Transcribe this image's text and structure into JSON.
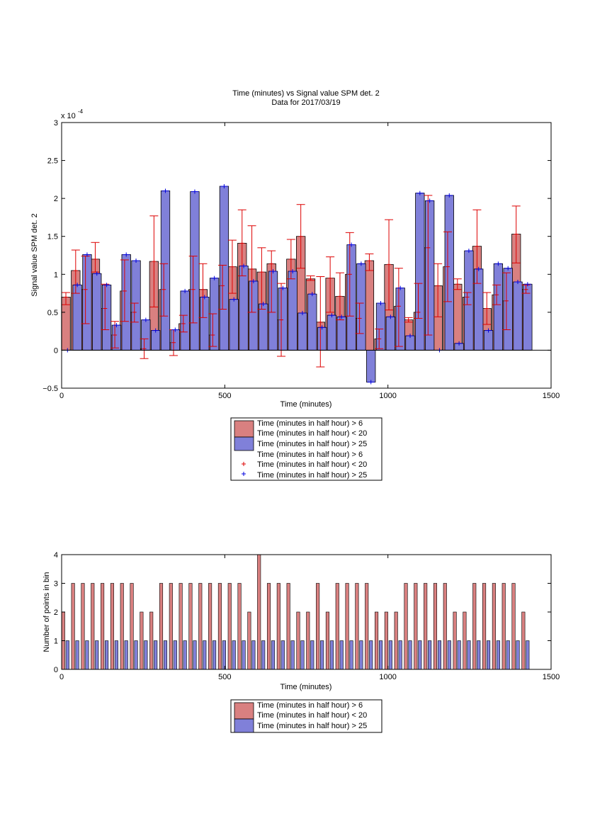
{
  "chart_data": [
    {
      "type": "bar",
      "title": "Time (minutes) vs Signal value SPM det. 2",
      "subtitle": "Data for 2017/03/19",
      "xlabel": "Time (minutes)",
      "ylabel": "Signal value SPM det. 2",
      "exponent_label": "x 10",
      "exponent_power": "-4",
      "xlim": [
        0,
        1500
      ],
      "ylim": [
        -0.5,
        3
      ],
      "xticks": [
        0,
        500,
        1000,
        1500
      ],
      "yticks": [
        -0.5,
        0,
        0.5,
        1,
        1.5,
        2,
        2.5,
        3
      ],
      "xtick_labels": [
        "0",
        "500",
        "1000",
        "1500"
      ],
      "ytick_labels": [
        "−0.5",
        "0",
        "0.5",
        "1",
        "1.5",
        "2",
        "2.5",
        "3"
      ],
      "grid": false,
      "legend_position": "below",
      "colors": {
        "red": "#d98080",
        "blue": "#8080d9",
        "errorbar": "#dd0000",
        "bluemark": "#0000dd"
      },
      "legend": [
        {
          "kind": "patch",
          "color": "#d98080",
          "lines": [
            "Time (minutes in half hour) > 6",
            "Time (minutes in half hour) < 20"
          ]
        },
        {
          "kind": "patch",
          "color": "#8080d9",
          "lines": [
            "Time (minutes in half hour) > 25"
          ]
        },
        {
          "kind": "marker",
          "color": "#dd0000",
          "lines": [
            "Time (minutes in half hour) > 6",
            "Time (minutes in half hour) < 20"
          ]
        },
        {
          "kind": "marker",
          "color": "#0000dd",
          "lines": [
            "Time (minutes in half hour) > 25"
          ]
        }
      ],
      "series": [
        {
          "x": [
            13,
            43,
            73,
            103,
            133,
            163,
            193,
            223,
            253,
            283,
            313,
            343,
            373,
            403,
            433,
            463,
            493,
            523,
            553,
            583,
            613,
            643,
            673,
            703,
            733,
            763,
            793,
            823,
            853,
            883,
            913,
            943,
            973,
            1003,
            1033,
            1063,
            1093,
            1123,
            1153,
            1183,
            1213,
            1243,
            1273,
            1303,
            1333,
            1363,
            1393,
            1423
          ],
          "values": [
            0.7,
            1.05,
            0.8,
            1.2,
            0.55,
            0.2,
            0.78,
            0.5,
            0.02,
            1.17,
            0.8,
            0.1,
            0.35,
            0.8,
            0.8,
            0.2,
            0.85,
            1.1,
            1.41,
            1.07,
            1.03,
            1.14,
            0.4,
            1.2,
            1.5,
            0.94,
            0.37,
            0.95,
            0.71,
            1.0,
            0.42,
            1.18,
            0.15,
            1.13,
            0.58,
            0.4,
            0.5,
            1.35,
            0.85,
            1.1,
            0.87,
            0.7,
            1.37,
            0.55,
            0.73,
            0.65,
            1.53,
            0.8
          ],
          "err_low": [
            0.6,
            0.75,
            0.35,
            1.03,
            0.27,
            0.03,
            0.38,
            0.37,
            -0.11,
            0.57,
            0.45,
            -0.07,
            0.24,
            0.36,
            0.43,
            0.05,
            0.54,
            0.75,
            0.98,
            0.5,
            0.54,
            0.5,
            -0.08,
            0.94,
            1.08,
            0.92,
            -0.22,
            0.5,
            0.4,
            0.45,
            0.22,
            1.05,
            0.02,
            0.53,
            0.05,
            0.37,
            0.42,
            0.2,
            0.44,
            0.64,
            0.8,
            0.6,
            0.88,
            0.34,
            0.6,
            0.27,
            1.15,
            0.75
          ],
          "err_high": [
            0.76,
            1.32,
            1.24,
            1.42,
            0.87,
            0.38,
            1.19,
            0.62,
            0.15,
            1.77,
            1.14,
            0.27,
            0.46,
            1.24,
            1.14,
            0.48,
            1.12,
            1.45,
            1.85,
            1.64,
            1.35,
            1.31,
            0.88,
            1.46,
            1.92,
            0.98,
            0.97,
            1.23,
            1.02,
            1.55,
            0.62,
            1.27,
            0.28,
            1.72,
            1.08,
            0.43,
            0.88,
            2.04,
            1.14,
            1.56,
            0.94,
            0.76,
            1.85,
            0.76,
            0.86,
            1.02,
            1.9,
            0.86
          ]
        },
        {
          "x": [
            18,
            48,
            78,
            108,
            138,
            168,
            198,
            228,
            258,
            288,
            318,
            348,
            378,
            408,
            438,
            468,
            498,
            528,
            558,
            588,
            618,
            648,
            678,
            708,
            738,
            768,
            798,
            828,
            858,
            888,
            918,
            948,
            978,
            1008,
            1038,
            1068,
            1098,
            1128,
            1158,
            1188,
            1218,
            1248,
            1278,
            1308,
            1338,
            1368,
            1398,
            1428
          ],
          "values": [
            0.0,
            0.86,
            1.26,
            1.01,
            0.86,
            0.33,
            1.26,
            1.18,
            0.4,
            0.26,
            2.1,
            0.27,
            0.78,
            2.09,
            0.7,
            0.95,
            2.16,
            0.67,
            1.11,
            0.91,
            0.61,
            1.04,
            0.82,
            1.04,
            0.49,
            0.74,
            0.3,
            0.46,
            0.44,
            1.39,
            1.14,
            -0.42,
            0.62,
            0.44,
            0.82,
            0.19,
            2.07,
            1.97,
            0.0,
            2.04,
            0.09,
            1.31,
            1.07,
            0.26,
            1.14,
            1.08,
            0.9,
            0.87
          ]
        }
      ]
    },
    {
      "type": "bar",
      "title": "",
      "xlabel": "Time (minutes)",
      "ylabel": "Number of points in bin",
      "xlim": [
        0,
        1500
      ],
      "ylim": [
        0,
        4
      ],
      "xticks": [
        0,
        500,
        1000,
        1500
      ],
      "yticks": [
        0,
        1,
        2,
        3,
        4
      ],
      "xtick_labels": [
        "0",
        "500",
        "1000",
        "1500"
      ],
      "ytick_labels": [
        "0",
        "1",
        "2",
        "3",
        "4"
      ],
      "grid": false,
      "legend_position": "below",
      "colors": {
        "red": "#d98080",
        "blue": "#8080d9"
      },
      "legend": [
        {
          "kind": "patch",
          "color": "#d98080",
          "lines": [
            "Time (minutes in half hour) > 6",
            "Time (minutes in half hour) < 20"
          ]
        },
        {
          "kind": "patch",
          "color": "#8080d9",
          "lines": [
            "Time (minutes in half hour) > 25"
          ]
        }
      ],
      "series": [
        {
          "x": [
            5,
            35,
            65,
            95,
            125,
            155,
            185,
            215,
            245,
            275,
            305,
            335,
            365,
            395,
            425,
            455,
            485,
            515,
            545,
            575,
            605,
            635,
            665,
            695,
            725,
            755,
            785,
            815,
            845,
            875,
            905,
            935,
            965,
            995,
            1025,
            1055,
            1085,
            1115,
            1145,
            1175,
            1205,
            1235,
            1265,
            1295,
            1325,
            1355,
            1385,
            1415
          ],
          "values": [
            2,
            3,
            3,
            3,
            3,
            3,
            3,
            3,
            2,
            2,
            3,
            3,
            3,
            3,
            3,
            3,
            3,
            3,
            3,
            2,
            4,
            3,
            3,
            3,
            2,
            2,
            3,
            2,
            3,
            3,
            3,
            3,
            2,
            2,
            2,
            3,
            3,
            3,
            3,
            3,
            2,
            2,
            3,
            3,
            3,
            3,
            3,
            2
          ]
        },
        {
          "x": [
            18,
            48,
            78,
            108,
            138,
            168,
            198,
            228,
            258,
            288,
            318,
            348,
            378,
            408,
            438,
            468,
            498,
            528,
            558,
            588,
            618,
            648,
            678,
            708,
            738,
            768,
            798,
            828,
            858,
            888,
            918,
            948,
            978,
            1008,
            1038,
            1068,
            1098,
            1128,
            1158,
            1188,
            1218,
            1248,
            1278,
            1308,
            1338,
            1368,
            1398,
            1428
          ],
          "values": [
            1,
            1,
            1,
            1,
            1,
            1,
            1,
            1,
            1,
            1,
            1,
            1,
            1,
            1,
            1,
            1,
            1,
            1,
            1,
            1,
            1,
            1,
            1,
            1,
            1,
            1,
            1,
            1,
            1,
            1,
            1,
            1,
            1,
            1,
            1,
            1,
            1,
            1,
            1,
            1,
            1,
            1,
            1,
            1,
            1,
            1,
            1,
            1
          ]
        }
      ]
    }
  ]
}
